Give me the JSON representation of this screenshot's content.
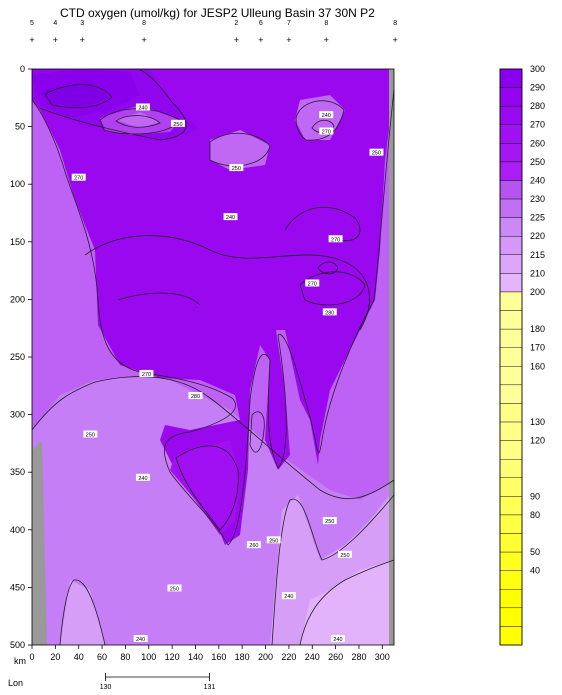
{
  "chart_data": {
    "type": "heatmap",
    "title": "CTD oxygen (umol/kg) for JESP2 Ulleung Basin 37 30N P2",
    "x_axis": {
      "unit_label": "km",
      "range": [
        0,
        310
      ],
      "ticks": [
        0,
        20,
        40,
        60,
        80,
        100,
        120,
        140,
        160,
        180,
        200,
        220,
        240,
        260,
        280,
        300
      ]
    },
    "y_axis": {
      "range": [
        0,
        500
      ],
      "inverted": true,
      "ticks": [
        0,
        50,
        100,
        150,
        200,
        250,
        300,
        350,
        400,
        450,
        500
      ]
    },
    "lon_axis": {
      "label": "Lon",
      "ticks": [
        {
          "lon": "130",
          "km": 63
        },
        {
          "lon": "131",
          "km": 152
        }
      ]
    },
    "stations": [
      {
        "id": "5",
        "km": 0
      },
      {
        "id": "4",
        "km": 20
      },
      {
        "id": "3",
        "km": 43
      },
      {
        "id": "8",
        "km": 96
      },
      {
        "id": "2",
        "km": 175
      },
      {
        "id": "6",
        "km": 196
      },
      {
        "id": "7",
        "km": 220
      },
      {
        "id": "8",
        "km": 252
      },
      {
        "id": "8",
        "km": 311
      }
    ],
    "colorbar": {
      "levels": [
        300,
        290,
        280,
        270,
        260,
        250,
        240,
        230,
        225,
        220,
        215,
        210,
        200,
        190,
        180,
        170,
        160,
        150,
        140,
        130,
        120,
        110,
        100,
        90,
        80,
        70,
        50,
        40,
        30,
        20,
        10
      ],
      "labeled": [
        "300",
        "290",
        "280",
        "270",
        "260",
        "250",
        "240",
        "230",
        "225",
        "220",
        "215",
        "210",
        "200",
        "",
        "180",
        "170",
        "160",
        "",
        "",
        "130",
        "120",
        "",
        "",
        "90",
        "80",
        "",
        "50",
        "40",
        "",
        "",
        ""
      ],
      "colors": [
        "#8800ee",
        "#9404ee",
        "#9a08f0",
        "#9f10f2",
        "#a516f4",
        "#aa1ef4",
        "#b455f2",
        "#c070f4",
        "#cc88f6",
        "#d698f8",
        "#dda6fa",
        "#e4b4fc",
        "#ffff99",
        "#ffff99",
        "#ffff99",
        "#ffff99",
        "#ffff99",
        "#ffff99",
        "#ffff88",
        "#ffff88",
        "#ffff88",
        "#ffff77",
        "#ffff66",
        "#ffff55",
        "#ffff44",
        "#ffff33",
        "#ffff22",
        "#ffff11",
        "#ffff00",
        "#ffff00",
        "#ffff00"
      ]
    },
    "contour_labels": [
      {
        "text": "240",
        "km": 95,
        "depth": 40
      },
      {
        "text": "250",
        "km": 125,
        "depth": 57
      },
      {
        "text": "270",
        "km": 40,
        "depth": 113
      },
      {
        "text": "240",
        "km": 252,
        "depth": 48
      },
      {
        "text": "270",
        "km": 252,
        "depth": 65
      },
      {
        "text": "250",
        "km": 295,
        "depth": 87
      },
      {
        "text": "250",
        "km": 175,
        "depth": 103
      },
      {
        "text": "240",
        "km": 170,
        "depth": 154
      },
      {
        "text": "270",
        "km": 260,
        "depth": 177
      },
      {
        "text": "270",
        "km": 240,
        "depth": 223
      },
      {
        "text": "280",
        "km": 255,
        "depth": 253
      },
      {
        "text": "270",
        "km": 98,
        "depth": 317
      },
      {
        "text": "280",
        "km": 140,
        "depth": 340
      },
      {
        "text": "250",
        "km": 50,
        "depth": 380
      },
      {
        "text": "240",
        "km": 95,
        "depth": 425
      },
      {
        "text": "250",
        "km": 255,
        "depth": 470
      },
      {
        "text": "260",
        "km": 190,
        "depth": 495
      },
      {
        "text": "250",
        "km": 207,
        "depth": 490
      },
      {
        "text": "250",
        "km": 268,
        "depth": 505
      },
      {
        "text": "250",
        "km": 122,
        "depth": 540
      },
      {
        "text": "240",
        "km": 220,
        "depth": 548
      },
      {
        "text": "240",
        "km": 93,
        "depth": 628
      },
      {
        "text": "240",
        "km": 262,
        "depth": 642
      }
    ]
  }
}
